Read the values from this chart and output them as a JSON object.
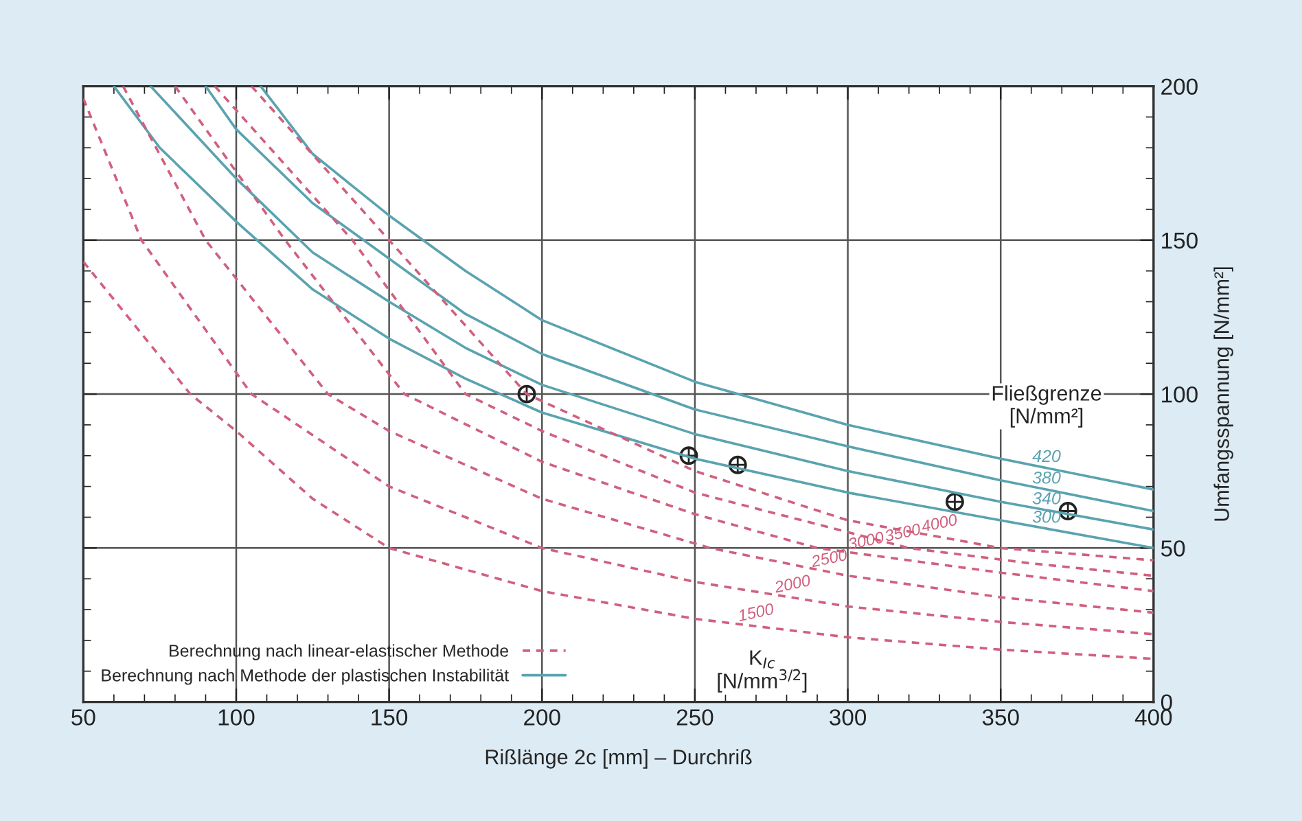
{
  "chart_data": {
    "type": "line",
    "xlabel": "Rißlänge 2c [mm] – Durchriß",
    "ylabel": "Umfangsspannung [N/mm²]",
    "xlim": [
      50,
      400
    ],
    "xticks": [
      50,
      100,
      150,
      200,
      250,
      300,
      350,
      400
    ],
    "ylim": [
      0,
      200
    ],
    "yticks": [
      0,
      50,
      100,
      150,
      200
    ],
    "grid": true,
    "annotations": [
      "Berechnung nach linear-elastischer Methode",
      "Berechnung nach Methode der plastischen Instabilität",
      "Fließgrenze\n[N/mm²]",
      "K$_{Ic}$\n[N/mm$^{3/2}$]"
    ],
    "series": [
      {
        "name": "420",
        "color": "#5aa3b0",
        "line_style": "solid",
        "x": [
          108,
          125,
          150,
          175,
          200,
          250,
          300,
          350,
          400
        ],
        "values": [
          200,
          178,
          158,
          140,
          124,
          104,
          90,
          79,
          69
        ]
      },
      {
        "name": "380",
        "color": "#5aa3b0",
        "line_style": "solid",
        "x": [
          90,
          100,
          125,
          150,
          175,
          200,
          250,
          300,
          350,
          400
        ],
        "values": [
          200,
          186,
          162,
          144,
          126,
          113,
          95,
          83,
          72,
          62
        ]
      },
      {
        "name": "340",
        "color": "#5aa3b0",
        "line_style": "solid",
        "x": [
          72,
          100,
          125,
          150,
          175,
          200,
          250,
          300,
          350,
          400
        ],
        "values": [
          200,
          170,
          146,
          130,
          115,
          103,
          87,
          75,
          65,
          56
        ]
      },
      {
        "name": "300",
        "color": "#5aa3b0",
        "line_style": "solid",
        "x": [
          60,
          75,
          100,
          125,
          150,
          175,
          200,
          250,
          300,
          350,
          400
        ],
        "values": [
          200,
          180,
          156,
          134,
          118,
          105,
          94,
          79,
          68,
          59,
          50
        ]
      },
      {
        "name": "4000",
        "color": "#d0607e",
        "line_style": "dashed",
        "x": [
          105,
          150,
          195,
          250,
          300,
          350,
          400
        ],
        "values": [
          200,
          150,
          100,
          75,
          59,
          50,
          46
        ]
      },
      {
        "name": "3500",
        "color": "#d0607e",
        "line_style": "dashed",
        "x": [
          93,
          138,
          175,
          200,
          250,
          320,
          360,
          400
        ],
        "values": [
          200,
          150,
          100,
          88,
          68,
          50,
          45,
          41
        ]
      },
      {
        "name": "3000",
        "color": "#d0607e",
        "line_style": "dashed",
        "x": [
          80,
          116,
          155,
          200,
          250,
          290,
          350,
          400
        ],
        "values": [
          200,
          150,
          100,
          78,
          61,
          50,
          42,
          36
        ]
      },
      {
        "name": "2500",
        "color": "#d0607e",
        "line_style": "dashed",
        "x": [
          63,
          90,
          130,
          150,
          200,
          255,
          300,
          350,
          400
        ],
        "values": [
          200,
          150,
          100,
          88,
          66,
          50,
          41,
          34,
          29
        ]
      },
      {
        "name": "2000",
        "color": "#d0607e",
        "line_style": "dashed",
        "x": [
          50,
          69,
          105,
          150,
          200,
          250,
          300,
          350,
          400
        ],
        "values": [
          196,
          150,
          100,
          70,
          50,
          39,
          31,
          26,
          22
        ]
      },
      {
        "name": "1500",
        "color": "#d0607e",
        "line_style": "dashed",
        "x": [
          50,
          85,
          100,
          125,
          150,
          200,
          250,
          300,
          350,
          400
        ],
        "values": [
          143,
          100,
          88,
          66,
          50,
          36,
          27,
          21,
          17,
          14
        ]
      },
      {
        "type": "scatter",
        "marker": "circle",
        "color": "#222222",
        "x": [
          195,
          248,
          264,
          335,
          372
        ],
        "values": [
          100,
          80,
          77,
          65,
          62
        ]
      }
    ]
  }
}
